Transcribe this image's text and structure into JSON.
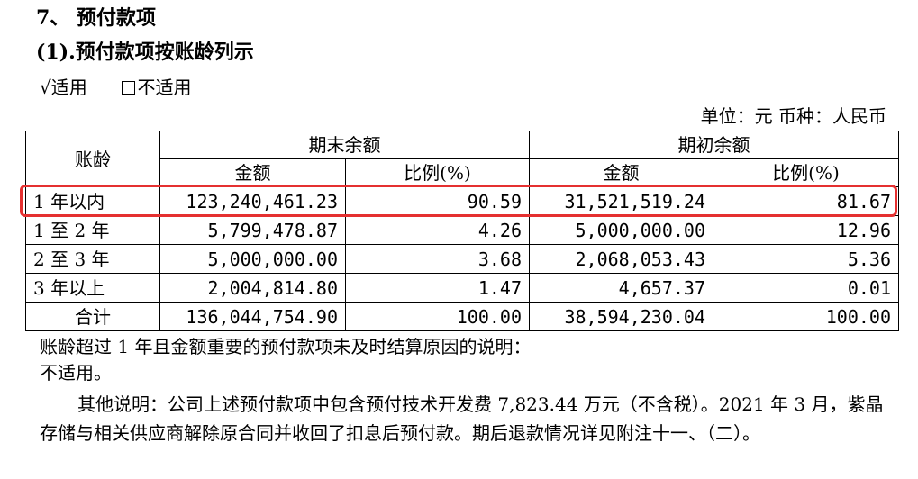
{
  "section": {
    "title": "7、  预付款项",
    "subtitle": "(1).预付款项按账龄列示"
  },
  "options": {
    "applicable_mark": "√",
    "applicable_label": "适用",
    "not_applicable_label": "不适用"
  },
  "unit_line": "单位：元   币种：人民币",
  "table": {
    "col_aging": "账龄",
    "group_end": "期末余额",
    "group_begin": "期初余额",
    "sub_amount": "金额",
    "sub_ratio": "比例(%)",
    "rows": [
      {
        "aging": "1 年以内",
        "end_amount": "123,240,461.23",
        "end_ratio": "90.59",
        "begin_amount": "31,521,519.24",
        "begin_ratio": "81.67"
      },
      {
        "aging": "1 至 2 年",
        "end_amount": "5,799,478.87",
        "end_ratio": "4.26",
        "begin_amount": "5,000,000.00",
        "begin_ratio": "12.96"
      },
      {
        "aging": "2 至 3 年",
        "end_amount": "5,000,000.00",
        "end_ratio": "3.68",
        "begin_amount": "2,068,053.43",
        "begin_ratio": "5.36"
      },
      {
        "aging": "3 年以上",
        "end_amount": "2,004,814.80",
        "end_ratio": "1.47",
        "begin_amount": "4,657.37",
        "begin_ratio": "0.01"
      },
      {
        "aging": "合计",
        "end_amount": "136,044,754.90",
        "end_ratio": "100.00",
        "begin_amount": "38,594,230.04",
        "begin_ratio": "100.00"
      }
    ]
  },
  "notes": {
    "explanation_title": "账龄超过 1 年且金额重要的预付款项未及时结算原因的说明：",
    "explanation_value": "不适用。",
    "other": "其他说明：公司上述预付款项中包含预付技术开发费 7,823.44 万元（不含税）。2021 年 3 月，紫晶存储与相关供应商解除原合同并收回了扣息后预付款。期后退款情况详见附注十一、（二）。"
  },
  "highlight_color": "#e53030"
}
